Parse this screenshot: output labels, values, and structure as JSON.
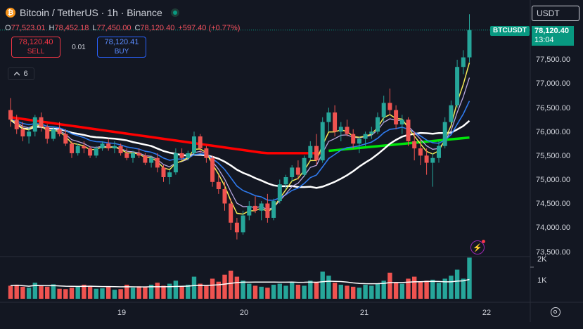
{
  "header": {
    "coin_glyph": "₿",
    "title": "Bitcoin / TetherUS · 1h · Binance"
  },
  "ohlc": {
    "o_key": "O",
    "o_val": "77,523.01",
    "h_key": "H",
    "h_val": "78,452.18",
    "l_key": "L",
    "l_val": "77,450.00",
    "c_key": "C",
    "c_val": "78,120.40",
    "change": "+597.40 (+0.77%)"
  },
  "trade": {
    "sell_price": "78,120.40",
    "sell_label": "SELL",
    "spread": "0.01",
    "buy_price": "78,120.41",
    "buy_label": "BUY"
  },
  "indicators": {
    "count": "6"
  },
  "currency": {
    "selected": "USDT"
  },
  "last_price": {
    "symbol": "BTCUSDT",
    "price": "78,120.40",
    "countdown": "13:04"
  },
  "colors": {
    "up": "#26a69a",
    "down": "#ef5350",
    "sma_white": "#ffffff",
    "ema_yellow": "#f5ea56",
    "ema_blue": "#2f7bef",
    "ema_violet": "#b9a8e0",
    "trail_red": "#ff0000",
    "trail_green": "#00e60b"
  },
  "chart_data": {
    "type": "candlestick",
    "price_axis_labels": [
      "78,000.00",
      "77,500.00",
      "77,000.00",
      "76,500.00",
      "76,000.00",
      "75,500.00",
      "75,000.00",
      "74,500.00",
      "74,000.00",
      "73,500.00"
    ],
    "price_axis_values": [
      78000,
      77500,
      77000,
      76500,
      76000,
      75500,
      75000,
      74500,
      74000,
      73500
    ],
    "volume_axis_labels": [
      "2K",
      "1K"
    ],
    "x_tick_labels": [
      "19",
      "20",
      "21",
      "22"
    ],
    "ylim": [
      73400,
      78600
    ],
    "candles": [
      [
        76450,
        76700,
        76100,
        76250
      ],
      [
        76250,
        76350,
        75950,
        76050
      ],
      [
        76050,
        76200,
        75800,
        75900
      ],
      [
        75900,
        76100,
        75750,
        76000
      ],
      [
        76000,
        76350,
        75900,
        76300
      ],
      [
        76300,
        76400,
        76000,
        76100
      ],
      [
        76100,
        76150,
        75750,
        75850
      ],
      [
        75850,
        76100,
        75800,
        76050
      ],
      [
        76050,
        76200,
        75900,
        75950
      ],
      [
        75950,
        76050,
        75700,
        75750
      ],
      [
        75750,
        75800,
        75450,
        75550
      ],
      [
        75550,
        75750,
        75500,
        75700
      ],
      [
        75700,
        75800,
        75550,
        75650
      ],
      [
        75650,
        75700,
        75450,
        75500
      ],
      [
        75500,
        75700,
        75450,
        75650
      ],
      [
        75650,
        75800,
        75600,
        75750
      ],
      [
        75750,
        75850,
        75600,
        75650
      ],
      [
        75650,
        75800,
        75550,
        75700
      ],
      [
        75700,
        75750,
        75500,
        75550
      ],
      [
        75550,
        75650,
        75400,
        75450
      ],
      [
        75450,
        75600,
        75350,
        75550
      ],
      [
        75550,
        75650,
        75450,
        75500
      ],
      [
        75500,
        75550,
        75300,
        75350
      ],
      [
        75350,
        75500,
        75250,
        75450
      ],
      [
        75450,
        75550,
        75150,
        75250
      ],
      [
        75250,
        75300,
        74950,
        75050
      ],
      [
        75050,
        75200,
        74900,
        75150
      ],
      [
        75150,
        75650,
        75100,
        75550
      ],
      [
        75550,
        75650,
        75400,
        75450
      ],
      [
        75450,
        75600,
        75400,
        75550
      ],
      [
        75550,
        76000,
        75500,
        75900
      ],
      [
        75900,
        75950,
        75550,
        75650
      ],
      [
        75650,
        75700,
        75350,
        75450
      ],
      [
        75450,
        75500,
        74850,
        74950
      ],
      [
        74950,
        75100,
        74700,
        74800
      ],
      [
        74800,
        74950,
        74350,
        74500
      ],
      [
        74500,
        74600,
        73950,
        74100
      ],
      [
        74100,
        74200,
        73750,
        73900
      ],
      [
        73900,
        74350,
        73850,
        74250
      ],
      [
        74250,
        74550,
        74150,
        74450
      ],
      [
        74450,
        74650,
        74300,
        74350
      ],
      [
        74350,
        74550,
        74150,
        74500
      ],
      [
        74500,
        74700,
        74100,
        74200
      ],
      [
        74200,
        74600,
        74150,
        74550
      ],
      [
        74550,
        75000,
        74500,
        74900
      ],
      [
        74900,
        75100,
        74800,
        75050
      ],
      [
        75050,
        75300,
        74950,
        75250
      ],
      [
        75250,
        75400,
        75000,
        75100
      ],
      [
        75100,
        75500,
        75050,
        75450
      ],
      [
        75450,
        75800,
        75400,
        75700
      ],
      [
        75700,
        75950,
        75300,
        75400
      ],
      [
        75400,
        76300,
        75350,
        76200
      ],
      [
        76200,
        76500,
        76000,
        76400
      ],
      [
        76400,
        76550,
        75900,
        76000
      ],
      [
        76000,
        76200,
        75800,
        76100
      ],
      [
        76100,
        76250,
        75900,
        75950
      ],
      [
        75950,
        76050,
        75650,
        75750
      ],
      [
        75750,
        75900,
        75550,
        75850
      ],
      [
        75850,
        76000,
        75700,
        75950
      ],
      [
        75950,
        76100,
        75850,
        76000
      ],
      [
        76000,
        76400,
        75950,
        76300
      ],
      [
        76300,
        76750,
        76200,
        76600
      ],
      [
        76600,
        76900,
        76350,
        76450
      ],
      [
        76450,
        76550,
        76050,
        76150
      ],
      [
        76150,
        76350,
        75950,
        76250
      ],
      [
        76250,
        76300,
        75700,
        75800
      ],
      [
        75800,
        76000,
        75400,
        75650
      ],
      [
        75650,
        75850,
        75300,
        75500
      ],
      [
        75500,
        75650,
        75100,
        75350
      ],
      [
        75350,
        75550,
        74850,
        75450
      ],
      [
        75450,
        75800,
        75350,
        75700
      ],
      [
        75700,
        76300,
        75650,
        76200
      ],
      [
        76200,
        76650,
        76150,
        76550
      ],
      [
        76550,
        77500,
        76500,
        77350
      ],
      [
        77350,
        77700,
        77200,
        77550
      ],
      [
        77550,
        78450,
        77450,
        78120
      ]
    ],
    "volumes": [
      650,
      700,
      600,
      550,
      800,
      650,
      600,
      720,
      500,
      480,
      550,
      600,
      700,
      650,
      500,
      520,
      600,
      450,
      480,
      700,
      550,
      620,
      580,
      700,
      800,
      650,
      750,
      900,
      600,
      700,
      1100,
      750,
      650,
      1000,
      850,
      1200,
      1400,
      1100,
      900,
      750,
      650,
      600,
      550,
      700,
      750,
      650,
      800,
      700,
      650,
      900,
      850,
      1350,
      1150,
      800,
      700,
      650,
      600,
      550,
      700,
      650,
      750,
      900,
      1300,
      800,
      750,
      1000,
      1100,
      850,
      900,
      950,
      800,
      1000,
      1150,
      1450,
      1000,
      2050
    ]
  }
}
